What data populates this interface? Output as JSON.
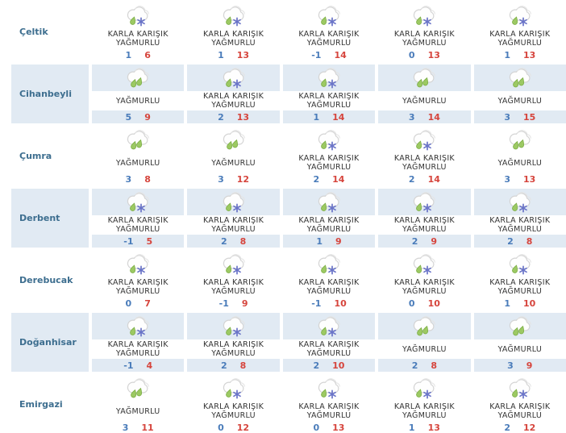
{
  "table": {
    "columns": 5,
    "rows": [
      {
        "district": "Çeltik",
        "cells": [
          {
            "icon": "sleet-icon",
            "condition": "KARLA KARIŞIK YAĞMURLU",
            "low": 1,
            "high": 6
          },
          {
            "icon": "sleet-icon",
            "condition": "KARLA KARIŞIK YAĞMURLU",
            "low": 1,
            "high": 13
          },
          {
            "icon": "sleet-icon",
            "condition": "KARLA KARIŞIK YAĞMURLU",
            "low": -1,
            "high": 14
          },
          {
            "icon": "sleet-icon",
            "condition": "KARLA KARIŞIK YAĞMURLU",
            "low": 0,
            "high": 13
          },
          {
            "icon": "sleet-icon",
            "condition": "KARLA KARIŞIK YAĞMURLU",
            "low": 1,
            "high": 13
          }
        ]
      },
      {
        "district": "Cihanbeyli",
        "cells": [
          {
            "icon": "rain-icon",
            "condition": "YAĞMURLU",
            "low": 5,
            "high": 9
          },
          {
            "icon": "sleet-icon",
            "condition": "KARLA KARIŞIK YAĞMURLU",
            "low": 2,
            "high": 13
          },
          {
            "icon": "sleet-icon",
            "condition": "KARLA KARIŞIK YAĞMURLU",
            "low": 1,
            "high": 14
          },
          {
            "icon": "rain-icon",
            "condition": "YAĞMURLU",
            "low": 3,
            "high": 14
          },
          {
            "icon": "rain-icon",
            "condition": "YAĞMURLU",
            "low": 3,
            "high": 15
          }
        ]
      },
      {
        "district": "Çumra",
        "cells": [
          {
            "icon": "rain-icon",
            "condition": "YAĞMURLU",
            "low": 3,
            "high": 8
          },
          {
            "icon": "rain-icon",
            "condition": "YAĞMURLU",
            "low": 3,
            "high": 12
          },
          {
            "icon": "sleet-icon",
            "condition": "KARLA KARIŞIK YAĞMURLU",
            "low": 2,
            "high": 14
          },
          {
            "icon": "sleet-icon",
            "condition": "KARLA KARIŞIK YAĞMURLU",
            "low": 2,
            "high": 14
          },
          {
            "icon": "rain-icon",
            "condition": "YAĞMURLU",
            "low": 3,
            "high": 13
          }
        ]
      },
      {
        "district": "Derbent",
        "cells": [
          {
            "icon": "sleet-icon",
            "condition": "KARLA KARIŞIK YAĞMURLU",
            "low": -1,
            "high": 5
          },
          {
            "icon": "sleet-icon",
            "condition": "KARLA KARIŞIK YAĞMURLU",
            "low": 2,
            "high": 8
          },
          {
            "icon": "sleet-icon",
            "condition": "KARLA KARIŞIK YAĞMURLU",
            "low": 1,
            "high": 9
          },
          {
            "icon": "sleet-icon",
            "condition": "KARLA KARIŞIK YAĞMURLU",
            "low": 2,
            "high": 9
          },
          {
            "icon": "sleet-icon",
            "condition": "KARLA KARIŞIK YAĞMURLU",
            "low": 2,
            "high": 8
          }
        ]
      },
      {
        "district": "Derebucak",
        "cells": [
          {
            "icon": "sleet-icon",
            "condition": "KARLA KARIŞIK YAĞMURLU",
            "low": 0,
            "high": 7
          },
          {
            "icon": "sleet-icon",
            "condition": "KARLA KARIŞIK YAĞMURLU",
            "low": -1,
            "high": 9
          },
          {
            "icon": "sleet-icon",
            "condition": "KARLA KARIŞIK YAĞMURLU",
            "low": -1,
            "high": 10
          },
          {
            "icon": "sleet-icon",
            "condition": "KARLA KARIŞIK YAĞMURLU",
            "low": 0,
            "high": 10
          },
          {
            "icon": "sleet-icon",
            "condition": "KARLA KARIŞIK YAĞMURLU",
            "low": 1,
            "high": 10
          }
        ]
      },
      {
        "district": "Doğanhisar",
        "cells": [
          {
            "icon": "sleet-icon",
            "condition": "KARLA KARIŞIK YAĞMURLU",
            "low": -1,
            "high": 4
          },
          {
            "icon": "sleet-icon",
            "condition": "KARLA KARIŞIK YAĞMURLU",
            "low": 2,
            "high": 8
          },
          {
            "icon": "sleet-icon",
            "condition": "KARLA KARIŞIK YAĞMURLU",
            "low": 2,
            "high": 10
          },
          {
            "icon": "rain-icon",
            "condition": "YAĞMURLU",
            "low": 2,
            "high": 8
          },
          {
            "icon": "rain-icon",
            "condition": "YAĞMURLU",
            "low": 3,
            "high": 9
          }
        ]
      },
      {
        "district": "Emirgazi",
        "cells": [
          {
            "icon": "rain-icon",
            "condition": "YAĞMURLU",
            "low": 3,
            "high": 11
          },
          {
            "icon": "sleet-icon",
            "condition": "KARLA KARIŞIK YAĞMURLU",
            "low": 0,
            "high": 12
          },
          {
            "icon": "sleet-icon",
            "condition": "KARLA KARIŞIK YAĞMURLU",
            "low": 0,
            "high": 13
          },
          {
            "icon": "sleet-icon",
            "condition": "KARLA KARIŞIK YAĞMURLU",
            "low": 1,
            "high": 13
          },
          {
            "icon": "sleet-icon",
            "condition": "KARLA KARIŞIK YAĞMURLU",
            "low": 2,
            "high": 12
          }
        ]
      }
    ]
  },
  "colors": {
    "alt_row_bg": "#e1eaf3",
    "district_link": "#3d6e8f",
    "temp_low": "#4a7cba",
    "temp_high": "#d6453d",
    "condition_text": "#333333",
    "cloud_outline": "#d4d4d4",
    "cloud_back_outline": "#e4e4e4",
    "rain_drop": "#9cc963",
    "rain_drop_edge": "#7bae45",
    "snowflake": "#6a74c8"
  }
}
